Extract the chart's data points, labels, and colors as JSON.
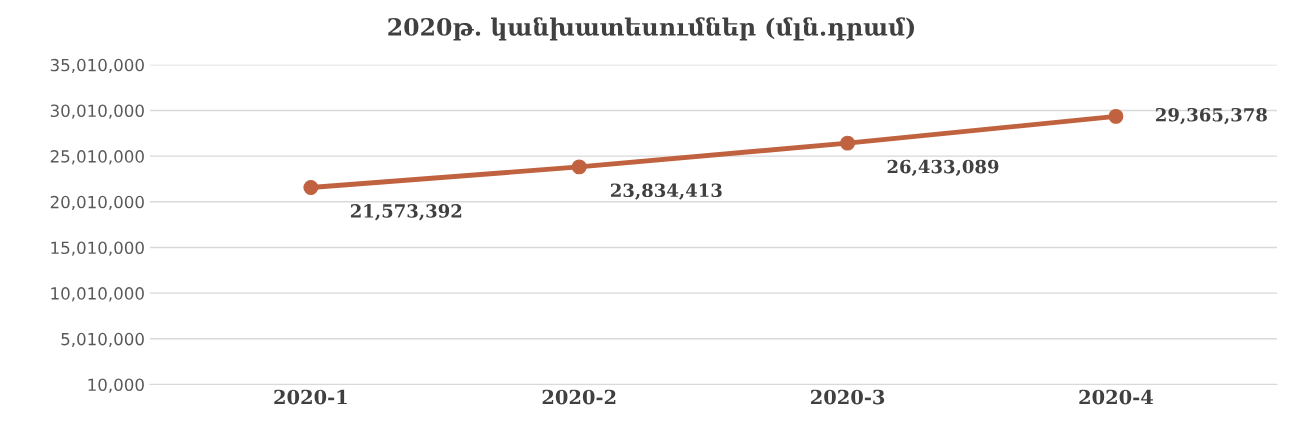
{
  "chart_data": {
    "type": "line",
    "title": "2020թ. կանխատեսումներ (մլն.դրամ)",
    "categories": [
      "2020-1",
      "2020-2",
      "2020-3",
      "2020-4"
    ],
    "series": [
      {
        "color": "#c0623f",
        "values": [
          21573392,
          23834413,
          26433089,
          29365378
        ],
        "value_labels": [
          "21,573,392",
          "23,834,413",
          "26,433,089",
          "29,365,378"
        ]
      }
    ],
    "ylim": [
      10000,
      35010000
    ],
    "yticks": [
      {
        "value": 10000,
        "label": "10,000"
      },
      {
        "value": 5010000,
        "label": "5,010,000"
      },
      {
        "value": 10010000,
        "label": "10,010,000"
      },
      {
        "value": 15010000,
        "label": "15,010,000"
      },
      {
        "value": 20010000,
        "label": "20,010,000"
      },
      {
        "value": 25010000,
        "label": "25,010,000"
      },
      {
        "value": 30010000,
        "label": "30,010,000"
      },
      {
        "value": 35010000,
        "label": "35,010,000"
      }
    ],
    "grid": "y",
    "marker": "circle",
    "line_style": "solid"
  }
}
